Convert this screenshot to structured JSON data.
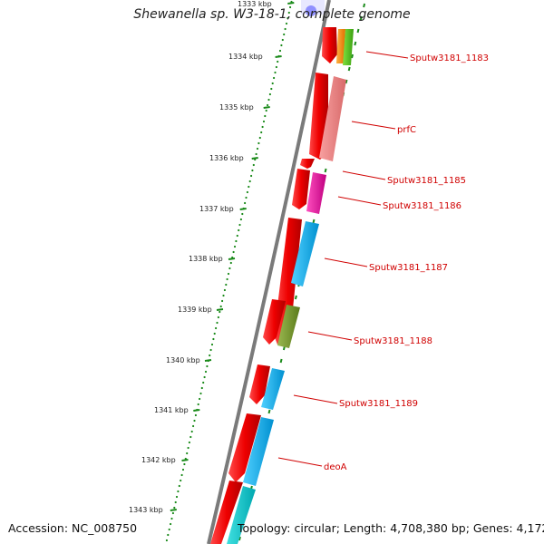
{
  "title": "Shewanella sp. W3-18-1, complete genome",
  "accession": "Accession: NC_008750",
  "topology": "Topology: circular; Length: 4,708,380 bp; Genes: 4,172",
  "colors": {
    "backbone": "#7a7a7a",
    "tick_dots": "#1a8a1a",
    "forward_genes": "#ff0000",
    "label": "#d00000",
    "arrow_line": "#d00000"
  },
  "kbp_labels": [
    "1333 kbp",
    "1334 kbp",
    "1335 kbp",
    "1336 kbp",
    "1337 kbp",
    "1338 kbp",
    "1339 kbp",
    "1340 kbp",
    "1341 kbp",
    "1342 kbp",
    "1343 kbp"
  ],
  "gene_labels": [
    {
      "name": "Sputw3181_1183",
      "color": "#ff7f00"
    },
    {
      "name": "prfC",
      "color": "#f08080"
    },
    {
      "name": "Sputw3181_1185",
      "color": "#ff0000"
    },
    {
      "name": "Sputw3181_1186",
      "color": "#e6199e"
    },
    {
      "name": "Sputw3181_1187",
      "color": "#00b0f0"
    },
    {
      "name": "Sputw3181_1188",
      "color": "#6b8e23"
    },
    {
      "name": "Sputw3181_1189",
      "color": "#00b0f0"
    },
    {
      "name": "deoA",
      "color": "#00b0f0"
    }
  ]
}
